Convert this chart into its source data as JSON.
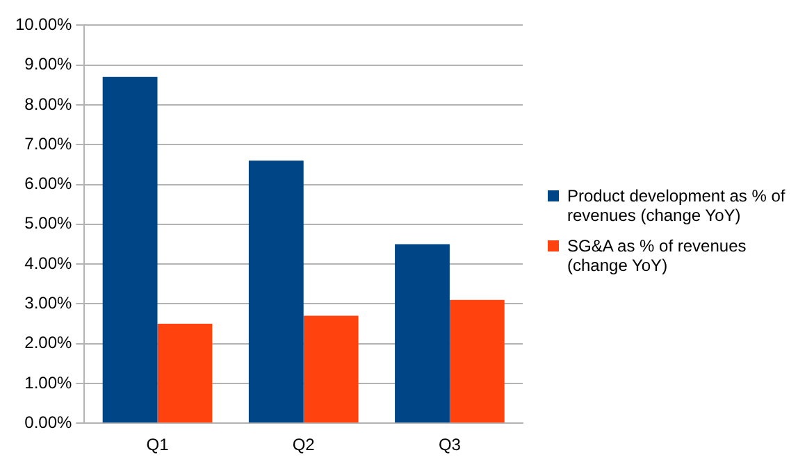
{
  "chart_data": {
    "type": "bar",
    "categories": [
      "Q1",
      "Q2",
      "Q3"
    ],
    "series": [
      {
        "name": "Product development as % of revenues (change YoY)",
        "color": "#004586",
        "values": [
          8.7,
          6.6,
          4.5
        ]
      },
      {
        "name": "SG&A as % of revenues (change YoY)",
        "color": "#ff420e",
        "values": [
          2.5,
          2.7,
          3.1
        ]
      }
    ],
    "ylim": [
      0,
      10
    ],
    "yticks": [
      {
        "value": 0,
        "label": "0.00%"
      },
      {
        "value": 1,
        "label": "1.00%"
      },
      {
        "value": 2,
        "label": "2.00%"
      },
      {
        "value": 3,
        "label": "3.00%"
      },
      {
        "value": 4,
        "label": "4.00%"
      },
      {
        "value": 5,
        "label": "5.00%"
      },
      {
        "value": 6,
        "label": "6.00%"
      },
      {
        "value": 7,
        "label": "7.00%"
      },
      {
        "value": 8,
        "label": "8.00%"
      },
      {
        "value": 9,
        "label": "9.00%"
      },
      {
        "value": 10,
        "label": "10.00%"
      }
    ],
    "grid": "y",
    "legend": "right"
  }
}
